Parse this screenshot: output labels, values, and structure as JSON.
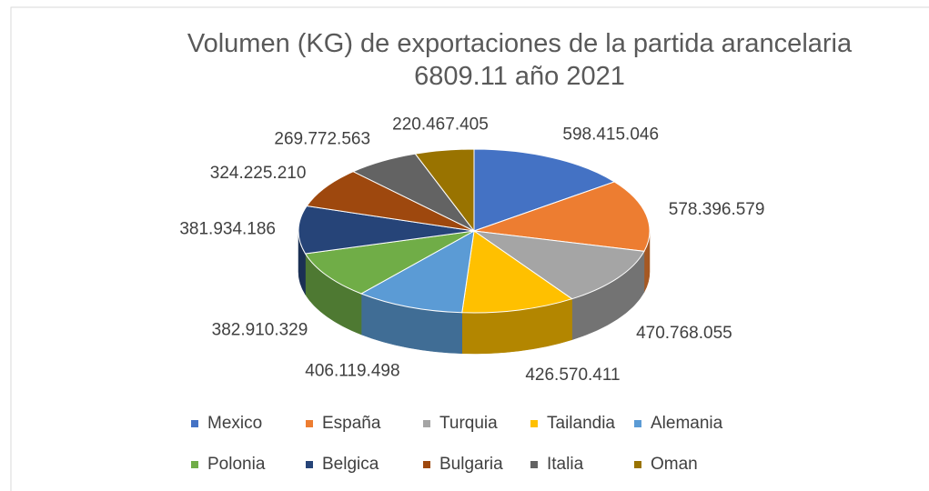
{
  "chart_data": {
    "type": "pie",
    "title": "Volumen (KG) de exportaciones de la partida arancelaria 6809.11 año 2021",
    "categories": [
      "Mexico",
      "España",
      "Turquia",
      "Tailandia",
      "Alemania",
      "Polonia",
      "Belgica",
      "Bulgaria",
      "Italia",
      "Oman"
    ],
    "values": [
      598415046,
      578396579,
      470768055,
      426570411,
      406119498,
      382910329,
      381934186,
      324225210,
      269772563,
      220467405
    ],
    "value_labels": [
      "598.415.046",
      "578.396.579",
      "470.768.055",
      "426.570.411",
      "406.119.498",
      "382.910.329",
      "381.934.186",
      "324.225.210",
      "269.772.563",
      "220.467.405"
    ],
    "colors": [
      "#4472c4",
      "#ed7d31",
      "#a5a5a5",
      "#ffc000",
      "#5b9bd5",
      "#70ad47",
      "#264478",
      "#9e480e",
      "#636363",
      "#997300"
    ],
    "legend": "bottom"
  }
}
